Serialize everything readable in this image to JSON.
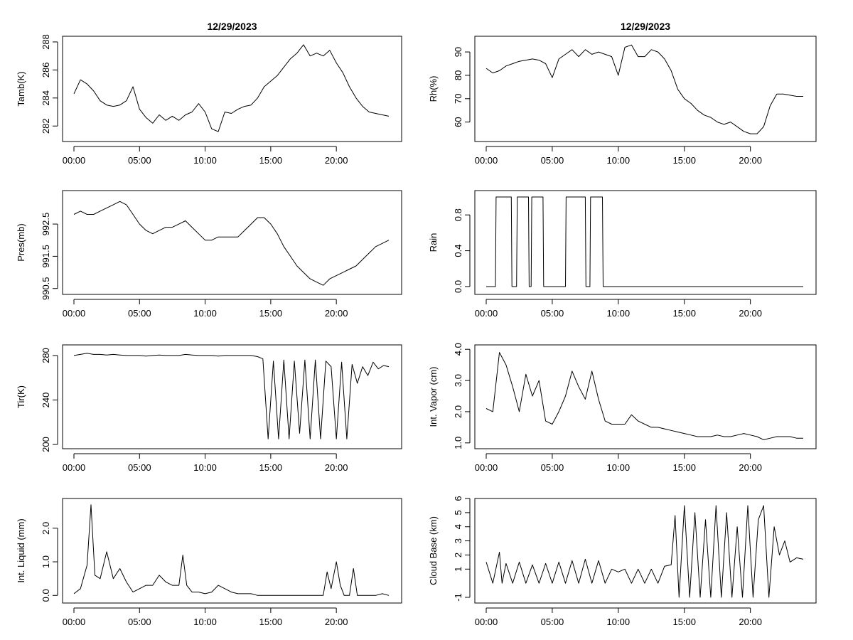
{
  "chart_data": [
    {
      "type": "line",
      "title": "12/29/2023",
      "ylabel": "Tamb(K)",
      "xticks": [
        "00:00",
        "05:00",
        "10:00",
        "15:00",
        "20:00"
      ],
      "xlim": [
        0,
        24
      ],
      "ylim": [
        281.2,
        288.2
      ],
      "yticks": [
        "282",
        "284",
        "286",
        "288"
      ],
      "x": [
        0,
        0.5,
        1,
        1.5,
        2,
        2.5,
        3,
        3.5,
        4,
        4.5,
        5,
        5.5,
        6,
        6.5,
        7,
        7.5,
        8,
        8.5,
        9,
        9.5,
        10,
        10.5,
        11,
        11.5,
        12,
        12.5,
        13,
        13.5,
        14,
        14.5,
        15,
        15.5,
        16,
        16.5,
        17,
        17.5,
        18,
        18.5,
        19,
        19.5,
        20,
        20.5,
        21,
        21.5,
        22,
        22.5,
        23,
        23.5,
        24
      ],
      "y": [
        284.3,
        285.3,
        285,
        284.5,
        283.8,
        283.5,
        283.4,
        283.5,
        283.8,
        284.8,
        283.2,
        282.6,
        282.2,
        282.8,
        282.4,
        282.7,
        282.4,
        282.8,
        283.0,
        283.6,
        283.0,
        281.8,
        281.6,
        283.0,
        282.9,
        283.2,
        283.4,
        283.5,
        284.0,
        284.8,
        285.2,
        285.6,
        286.2,
        286.8,
        287.2,
        287.8,
        287.0,
        287.2,
        287.0,
        287.4,
        286.5,
        285.8,
        284.8,
        284.0,
        283.4,
        283.0,
        282.9,
        282.8,
        282.7
      ]
    },
    {
      "type": "line",
      "title": "12/29/2023",
      "ylabel": "Rh(%)",
      "xticks": [
        "00:00",
        "05:00",
        "10:00",
        "15:00",
        "20:00"
      ],
      "xlim": [
        0,
        24
      ],
      "ylim": [
        53.5,
        95.5
      ],
      "yticks": [
        "60",
        "70",
        "80",
        "90"
      ],
      "x": [
        0,
        0.5,
        1,
        1.5,
        2,
        2.5,
        3,
        3.5,
        4,
        4.5,
        5,
        5.5,
        6,
        6.5,
        7,
        7.5,
        8,
        8.5,
        9,
        9.5,
        10,
        10.5,
        11,
        11.5,
        12,
        12.5,
        13,
        13.5,
        14,
        14.5,
        15,
        15.5,
        16,
        16.5,
        17,
        17.5,
        18,
        18.5,
        19,
        19.5,
        20,
        20.5,
        21,
        21.5,
        22,
        22.5,
        23,
        23.5,
        24
      ],
      "y": [
        83,
        81,
        82,
        84,
        85,
        86,
        86.5,
        87,
        86.5,
        85,
        79,
        87,
        89,
        91,
        88,
        91,
        89,
        90,
        89,
        88,
        80,
        92,
        93,
        88,
        88,
        91,
        90,
        87,
        82,
        74,
        70,
        68,
        65,
        63,
        62,
        60,
        59,
        60,
        58,
        56,
        55,
        55,
        58,
        67,
        72,
        72,
        71.5,
        71,
        71
      ]
    },
    {
      "type": "line",
      "title": "",
      "ylabel": "Pres(mb)",
      "xticks": [
        "00:00",
        "05:00",
        "10:00",
        "15:00",
        "20:00"
      ],
      "xlim": [
        0,
        24
      ],
      "ylim": [
        990.45,
        993.45
      ],
      "yticks": [
        "990.5",
        "991.5",
        "992.5"
      ],
      "x": [
        0,
        0.5,
        1,
        1.5,
        2,
        2.5,
        3,
        3.5,
        4,
        4.5,
        5,
        5.5,
        6,
        6.5,
        7,
        7.5,
        8,
        8.5,
        9,
        9.5,
        10,
        10.5,
        11,
        11.5,
        12,
        12.5,
        13,
        13.5,
        14,
        14.5,
        15,
        15.5,
        16,
        16.5,
        17,
        17.5,
        18,
        18.5,
        19,
        19.5,
        20,
        20.5,
        21,
        21.5,
        22,
        22.5,
        23,
        23.5,
        24
      ],
      "y": [
        992.8,
        992.9,
        992.8,
        992.8,
        992.9,
        993.0,
        993.1,
        993.2,
        993.1,
        992.8,
        992.5,
        992.3,
        992.2,
        992.3,
        992.4,
        992.4,
        992.5,
        992.6,
        992.4,
        992.2,
        992.0,
        992.0,
        992.1,
        992.1,
        992.1,
        992.1,
        992.3,
        992.5,
        992.7,
        992.7,
        992.5,
        992.2,
        991.8,
        991.5,
        991.2,
        991.0,
        990.8,
        990.7,
        990.6,
        990.8,
        990.9,
        991.0,
        991.1,
        991.2,
        991.4,
        991.6,
        991.8,
        991.9,
        992.0
      ]
    },
    {
      "type": "line",
      "title": "",
      "ylabel": "Rain",
      "xticks": [
        "00:00",
        "05:00",
        "10:00",
        "15:00",
        "20:00"
      ],
      "xlim": [
        0,
        24
      ],
      "ylim": [
        -0.04,
        1.04
      ],
      "yticks": [
        "0.0",
        "0.4",
        "0.8"
      ],
      "x": [
        0,
        0.7,
        0.75,
        1.9,
        1.95,
        2.3,
        2.35,
        3.2,
        3.25,
        3.4,
        3.45,
        4.3,
        4.35,
        6.0,
        6.05,
        7.5,
        7.55,
        7.85,
        7.9,
        8.8,
        8.85,
        24
      ],
      "y": [
        0,
        0,
        1,
        1,
        0,
        0,
        1,
        1,
        0,
        0,
        1,
        1,
        0,
        0,
        1,
        1,
        0,
        0,
        1,
        1,
        0,
        0
      ]
    },
    {
      "type": "line",
      "title": "",
      "ylabel": "Tir(K)",
      "xticks": [
        "00:00",
        "05:00",
        "10:00",
        "15:00",
        "20:00"
      ],
      "xlim": [
        0,
        24
      ],
      "ylim": [
        200,
        287
      ],
      "yticks": [
        "200",
        "240",
        "280"
      ],
      "x": [
        0,
        0.5,
        1,
        1.5,
        2,
        2.5,
        3,
        3.5,
        4,
        4.5,
        5,
        5.5,
        6,
        6.5,
        7,
        7.5,
        8,
        8.5,
        9,
        9.5,
        10,
        10.5,
        11,
        11.5,
        12,
        12.5,
        13,
        13.5,
        14,
        14.4,
        14.8,
        15.2,
        15.6,
        16.0,
        16.4,
        16.8,
        17.2,
        17.6,
        18.0,
        18.4,
        18.8,
        19.2,
        19.6,
        20.0,
        20.4,
        20.8,
        21.2,
        21.6,
        22.0,
        22.4,
        22.8,
        23.2,
        23.6,
        24
      ],
      "y": [
        280,
        281,
        282,
        281,
        281,
        280.5,
        281,
        280.5,
        280,
        280,
        280,
        279.5,
        280,
        280.5,
        280,
        280,
        280,
        281,
        280.5,
        280,
        280,
        280,
        279.5,
        280,
        280,
        280,
        280,
        280,
        279,
        277,
        205,
        275,
        205,
        276,
        205,
        275,
        210,
        276,
        205,
        276,
        205,
        275,
        270,
        205,
        274,
        205,
        272,
        255,
        270,
        262,
        274,
        268,
        271,
        270
      ]
    },
    {
      "type": "line",
      "title": "",
      "ylabel": "Int. Vapor (cm)",
      "xticks": [
        "00:00",
        "05:00",
        "10:00",
        "15:00",
        "20:00"
      ],
      "xlim": [
        0,
        24
      ],
      "ylim": [
        0.95,
        4.05
      ],
      "yticks": [
        "1.0",
        "2.0",
        "3.0",
        "4.0"
      ],
      "x": [
        0,
        0.5,
        1,
        1.5,
        2,
        2.5,
        3,
        3.5,
        4,
        4.5,
        5,
        5.5,
        6,
        6.5,
        7,
        7.5,
        8,
        8.5,
        9,
        9.5,
        10,
        10.5,
        11,
        11.5,
        12,
        12.5,
        13,
        13.5,
        14,
        14.5,
        15,
        15.5,
        16,
        16.5,
        17,
        17.5,
        18,
        18.5,
        19,
        19.5,
        20,
        20.5,
        21,
        21.5,
        22,
        22.5,
        23,
        23.5,
        24
      ],
      "y": [
        2.1,
        2.0,
        3.9,
        3.5,
        2.8,
        2.0,
        3.2,
        2.5,
        3.0,
        1.7,
        1.6,
        2.0,
        2.5,
        3.3,
        2.8,
        2.4,
        3.3,
        2.4,
        1.7,
        1.6,
        1.6,
        1.6,
        1.9,
        1.7,
        1.6,
        1.5,
        1.5,
        1.45,
        1.4,
        1.35,
        1.3,
        1.25,
        1.2,
        1.2,
        1.2,
        1.25,
        1.2,
        1.2,
        1.25,
        1.3,
        1.25,
        1.2,
        1.1,
        1.15,
        1.2,
        1.2,
        1.2,
        1.15,
        1.15
      ]
    },
    {
      "type": "line",
      "title": "",
      "ylabel": "Int. Liquid (mm)",
      "xticks": [
        "00:00",
        "05:00",
        "10:00",
        "15:00",
        "20:00"
      ],
      "xlim": [
        0,
        24
      ],
      "ylim": [
        -0.1,
        2.8
      ],
      "yticks": [
        "0.0",
        "1.0",
        "2.0"
      ],
      "x": [
        0,
        0.5,
        1,
        1.3,
        1.6,
        2,
        2.5,
        3,
        3.5,
        4,
        4.5,
        5,
        5.5,
        6,
        6.5,
        7,
        7.5,
        8,
        8.3,
        8.6,
        9,
        9.5,
        10,
        10.5,
        11,
        11.5,
        12,
        12.5,
        13,
        13.5,
        14,
        14.5,
        15,
        15.5,
        16,
        16.5,
        17,
        17.5,
        18,
        18.5,
        19,
        19.3,
        19.6,
        20,
        20.3,
        20.6,
        21,
        21.3,
        21.6,
        22,
        22.5,
        23,
        23.5,
        24
      ],
      "y": [
        0.05,
        0.2,
        0.9,
        2.7,
        0.6,
        0.5,
        1.3,
        0.5,
        0.8,
        0.4,
        0.1,
        0.2,
        0.3,
        0.3,
        0.6,
        0.4,
        0.3,
        0.3,
        1.2,
        0.3,
        0.1,
        0.1,
        0.05,
        0.1,
        0.3,
        0.2,
        0.1,
        0.05,
        0.05,
        0.05,
        0.0,
        0.0,
        0.0,
        0.0,
        0.0,
        0.0,
        0.0,
        0.0,
        0.0,
        0.0,
        0.0,
        0.7,
        0.2,
        1.0,
        0.3,
        0.0,
        0.0,
        0.8,
        0.0,
        0.0,
        0.0,
        0.0,
        0.05,
        0.0
      ]
    },
    {
      "type": "line",
      "title": "",
      "ylabel": "Cloud Base (km)",
      "xticks": [
        "00:00",
        "05:00",
        "10:00",
        "15:00",
        "20:00"
      ],
      "xlim": [
        0,
        24
      ],
      "ylim": [
        -1.1,
        5.8
      ],
      "yticks": [
        "-1",
        "1",
        "2",
        "3",
        "4",
        "5",
        "6"
      ],
      "x": [
        0,
        0.5,
        1,
        1.2,
        1.5,
        2,
        2.5,
        3,
        3.5,
        4,
        4.5,
        5,
        5.5,
        6,
        6.5,
        7,
        7.5,
        8,
        8.5,
        9,
        9.5,
        10,
        10.5,
        11,
        11.5,
        12,
        12.5,
        13,
        13.5,
        14,
        14.3,
        14.6,
        15.0,
        15.4,
        15.8,
        16.2,
        16.6,
        17.0,
        17.4,
        17.8,
        18.2,
        18.6,
        19.0,
        19.4,
        19.8,
        20.2,
        20.6,
        21.0,
        21.4,
        21.8,
        22.2,
        22.6,
        23.0,
        23.5,
        24
      ],
      "y": [
        1.5,
        0,
        2.2,
        0,
        1.4,
        0,
        1.5,
        0,
        1.3,
        0,
        1.4,
        0,
        1.5,
        0,
        1.6,
        0,
        1.7,
        0,
        1.6,
        0,
        1.0,
        0.8,
        1.0,
        0,
        1.0,
        0,
        1.0,
        0,
        1.2,
        1.3,
        4.8,
        -1,
        5.5,
        -1,
        5.0,
        -1,
        4.5,
        -1,
        5.5,
        -1,
        5.0,
        -1,
        4.0,
        -1,
        5.5,
        -1,
        4.5,
        5.5,
        -1,
        4.0,
        2.0,
        3.0,
        1.5,
        1.8,
        1.7
      ]
    }
  ]
}
